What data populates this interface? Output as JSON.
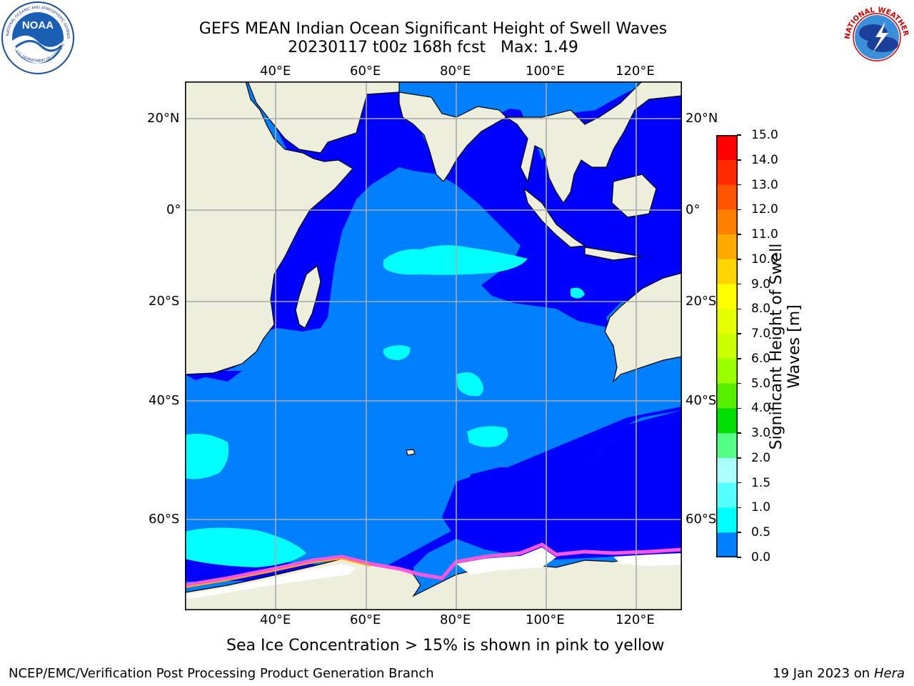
{
  "title": {
    "line1": "GEFS MEAN Indian Ocean Significant Height of Swell Waves",
    "line2": "20230117 t00z 168h fcst   Max: 1.49"
  },
  "map": {
    "lon_ticks": [
      "40°E",
      "60°E",
      "80°E",
      "100°E",
      "120°E"
    ],
    "lat_ticks": [
      "20°N",
      "0°",
      "20°S",
      "40°S",
      "60°S"
    ],
    "lon_range": [
      20,
      130
    ],
    "lat_range": [
      28,
      -87
    ],
    "grid": true,
    "colors": {
      "land": "#eeeedd",
      "wave_0_0_5": "#0000ff",
      "wave_0_5_1_0": "#0080ff",
      "wave_1_0_1_5": "#00ffff",
      "wave_1_5_2_0": "#55ffff",
      "sea_ice": "#ff55dd",
      "ice_white": "#ffffff"
    }
  },
  "colorbar": {
    "label": "Significant Height of Swell Waves [m]",
    "label_line1": "Significant Height of Swell",
    "label_line2": "Waves [m]",
    "ticks": [
      "15.0",
      "14.0",
      "13.0",
      "12.0",
      "11.0",
      "10.0",
      "9.0",
      "8.0",
      "7.0",
      "6.0",
      "5.0",
      "4.0",
      "3.0",
      "2.0",
      "1.5",
      "1.0",
      "0.5",
      "0.0"
    ],
    "colors": [
      "#ff0000",
      "#ff2a00",
      "#ff5500",
      "#ff8000",
      "#ffaa00",
      "#ffd500",
      "#ffff00",
      "#e6ff00",
      "#ccff00",
      "#99ff00",
      "#55ee00",
      "#00dd00",
      "#55ff88",
      "#aaffff",
      "#55ffff",
      "#00ffff",
      "#0080ff",
      "#0000ff"
    ]
  },
  "caption": "Sea Ice Concentration > 15% is shown in pink to yellow",
  "footer": {
    "left": "NCEP/EMC/Verification Post Processing Product Generation Branch",
    "right_prefix": "19 Jan 2023 on ",
    "right_host": "Hera"
  },
  "logos": {
    "noaa": "NOAA",
    "noaa_ring": "NATIONAL OCEANIC AND ATMOSPHERIC ADMINISTRATION",
    "noaa_ring_bottom": "U.S. DEPARTMENT OF COMMERCE",
    "nws_ring": "NATIONAL WEATHER SERVICE"
  }
}
